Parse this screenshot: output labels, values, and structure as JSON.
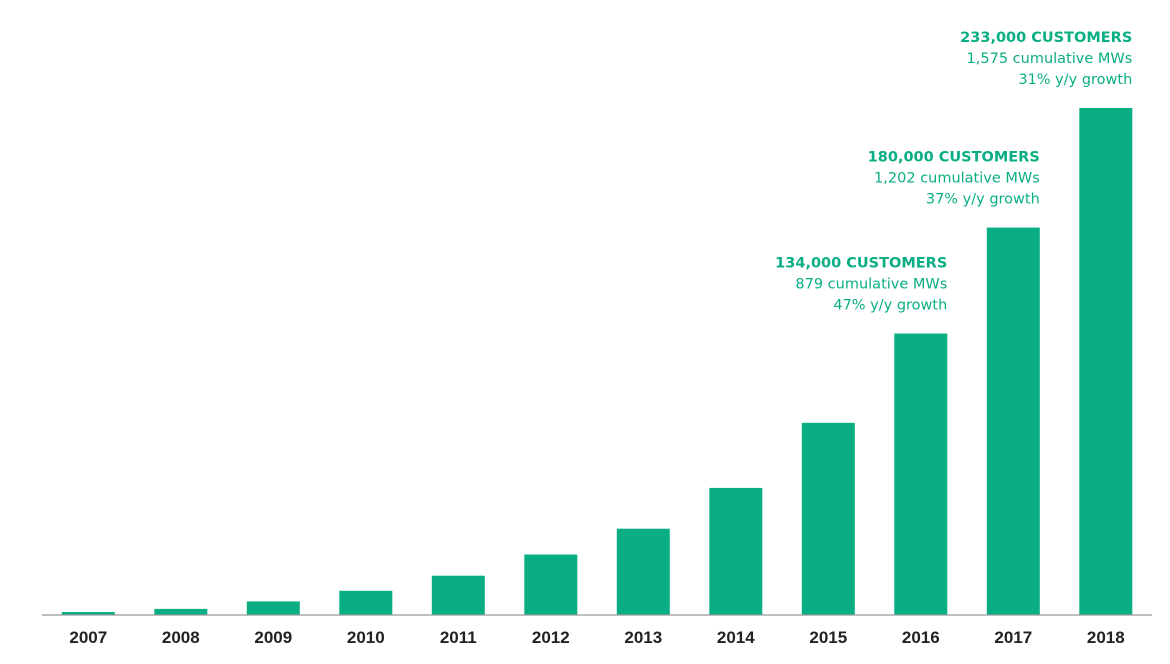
{
  "chart_data": {
    "type": "bar",
    "categories": [
      "2007",
      "2008",
      "2009",
      "2010",
      "2011",
      "2012",
      "2013",
      "2014",
      "2015",
      "2016",
      "2017",
      "2018"
    ],
    "values": [
      1000,
      2000,
      4500,
      8000,
      13000,
      20000,
      28500,
      42000,
      63500,
      93000,
      128000,
      167500
    ],
    "ylim": [
      0,
      167500
    ],
    "grid": false,
    "colors": {
      "bar": "#0AAE84",
      "annotation": "#0AAE84",
      "axis": "#999999",
      "tick_text": "#222222"
    },
    "annotations": [
      {
        "category": "2016",
        "title": "134,000 CUSTOMERS",
        "line1": "879 cumulative MWs",
        "line2": "47% y/y growth"
      },
      {
        "category": "2017",
        "title": "180,000 CUSTOMERS",
        "line1": "1,202 cumulative MWs",
        "line2": "37% y/y growth"
      },
      {
        "category": "2018",
        "title": "233,000 CUSTOMERS",
        "line1": "1,575 cumulative MWs",
        "line2": "31% y/y growth"
      }
    ]
  }
}
